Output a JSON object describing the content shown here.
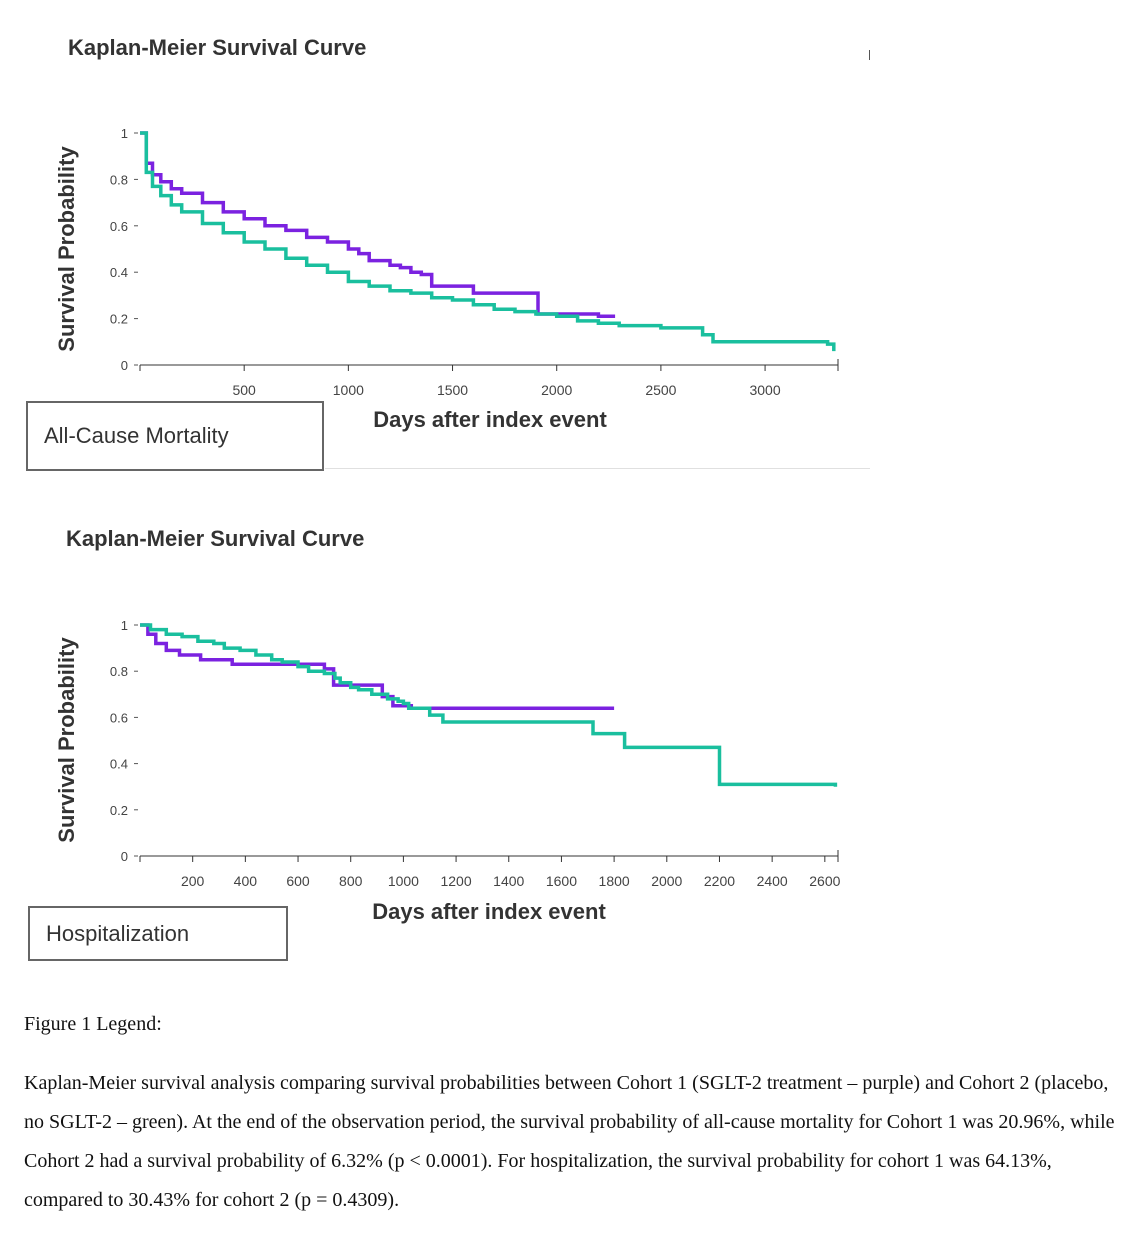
{
  "chart_data": [
    {
      "type": "line",
      "title": "Kaplan-Meier Survival Curve",
      "xlabel": "Days after index event",
      "ylabel": "Survival Probability",
      "xlim": [
        0,
        3350
      ],
      "ylim": [
        0,
        1
      ],
      "xticks": [
        500,
        1000,
        1500,
        2000,
        2500,
        3000
      ],
      "yticks": [
        0,
        0.2,
        0.4,
        0.6,
        0.8,
        1
      ],
      "ytick_labels": [
        "0",
        "0.2",
        "0.4",
        "0.6",
        "0.8",
        "1"
      ],
      "panel_label": "All-Cause Mortality",
      "step": true,
      "series": [
        {
          "color": "#7B22E0",
          "x": [
            0,
            30,
            60,
            100,
            150,
            200,
            300,
            400,
            500,
            600,
            700,
            800,
            900,
            1000,
            1050,
            1100,
            1200,
            1250,
            1300,
            1350,
            1400,
            1500,
            1600,
            1900,
            1910,
            2000,
            2200,
            2280
          ],
          "y": [
            1.0,
            0.87,
            0.82,
            0.79,
            0.76,
            0.74,
            0.7,
            0.66,
            0.63,
            0.6,
            0.58,
            0.55,
            0.53,
            0.5,
            0.48,
            0.45,
            0.43,
            0.42,
            0.4,
            0.39,
            0.34,
            0.34,
            0.31,
            0.31,
            0.22,
            0.22,
            0.21,
            0.21
          ]
        },
        {
          "color": "#1ABF9E",
          "x": [
            0,
            30,
            60,
            100,
            150,
            200,
            300,
            400,
            500,
            600,
            700,
            800,
            900,
            1000,
            1100,
            1200,
            1300,
            1400,
            1500,
            1600,
            1700,
            1800,
            1900,
            2000,
            2100,
            2200,
            2300,
            2400,
            2500,
            2600,
            2700,
            2750,
            2900,
            3000,
            3200,
            3300,
            3330
          ],
          "y": [
            1.0,
            0.83,
            0.77,
            0.73,
            0.69,
            0.66,
            0.61,
            0.57,
            0.53,
            0.5,
            0.46,
            0.43,
            0.4,
            0.36,
            0.34,
            0.32,
            0.31,
            0.29,
            0.28,
            0.26,
            0.24,
            0.23,
            0.22,
            0.21,
            0.19,
            0.18,
            0.17,
            0.17,
            0.16,
            0.16,
            0.13,
            0.1,
            0.1,
            0.1,
            0.1,
            0.09,
            0.06
          ]
        }
      ]
    },
    {
      "type": "line",
      "title": "Kaplan-Meier Survival Curve",
      "xlabel": "Days after index event",
      "ylabel": "Survival Probability",
      "xlim": [
        0,
        2650
      ],
      "ylim": [
        0,
        1
      ],
      "xticks": [
        200,
        400,
        600,
        800,
        1000,
        1200,
        1400,
        1600,
        1800,
        2000,
        2200,
        2400,
        2600
      ],
      "yticks": [
        0,
        0.2,
        0.4,
        0.6,
        0.8,
        1
      ],
      "ytick_labels": [
        "0",
        "0.2",
        "0.4",
        "0.6",
        "0.8",
        "1"
      ],
      "panel_label": "Hospitalization",
      "step": true,
      "series": [
        {
          "color": "#7B22E0",
          "x": [
            0,
            30,
            60,
            100,
            150,
            230,
            350,
            460,
            700,
            735,
            800,
            920,
            960,
            1030,
            1500,
            1800
          ],
          "y": [
            1.0,
            0.96,
            0.92,
            0.89,
            0.87,
            0.85,
            0.83,
            0.83,
            0.81,
            0.74,
            0.74,
            0.69,
            0.65,
            0.64,
            0.64,
            0.64
          ]
        },
        {
          "color": "#1ABF9E",
          "x": [
            0,
            40,
            100,
            160,
            220,
            280,
            320,
            380,
            440,
            500,
            540,
            600,
            640,
            700,
            740,
            760,
            800,
            830,
            880,
            940,
            980,
            1000,
            1020,
            1100,
            1150,
            1300,
            1400,
            1550,
            1720,
            1840,
            2100,
            2200,
            2350,
            2640
          ],
          "y": [
            1.0,
            0.98,
            0.96,
            0.95,
            0.93,
            0.92,
            0.9,
            0.89,
            0.87,
            0.85,
            0.84,
            0.82,
            0.8,
            0.79,
            0.77,
            0.75,
            0.73,
            0.72,
            0.7,
            0.68,
            0.67,
            0.66,
            0.64,
            0.61,
            0.58,
            0.58,
            0.58,
            0.58,
            0.53,
            0.47,
            0.47,
            0.31,
            0.31,
            0.3
          ]
        }
      ]
    }
  ],
  "legend": {
    "heading": "Figure 1 Legend:",
    "body": "Kaplan-Meier survival analysis comparing survival probabilities between Cohort 1 (SGLT-2 treatment – purple) and Cohort 2 (placebo, no SGLT-2 – green). At the end of the observation period, the survival probability of all-cause mortality for Cohort 1 was 20.96%, while Cohort 2 had a survival probability of 6.32% (p < 0.0001). For hospitalization, the survival probability for cohort 1 was 64.13%, compared to 30.43% for cohort 2 (p = 0.4309)."
  }
}
